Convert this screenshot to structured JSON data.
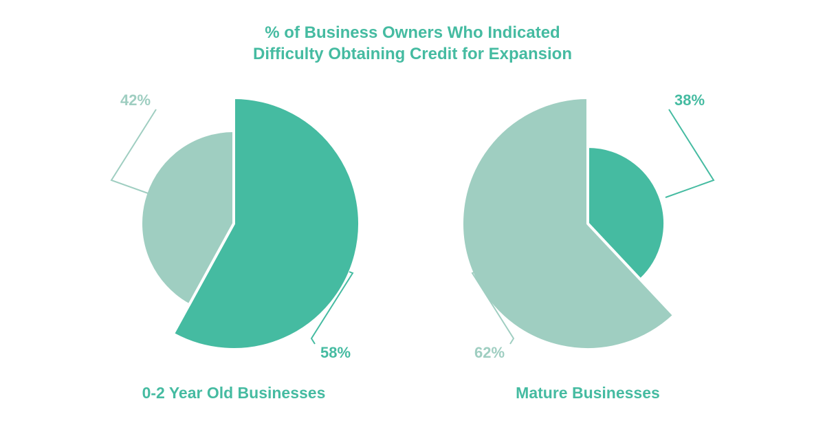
{
  "title": "% of Business Owners Who Indicated\nDifficulty Obtaining Credit for Expansion",
  "chart_data": [
    {
      "type": "pie",
      "title": "0-2 Year Old Businesses",
      "values": [
        58,
        42
      ],
      "value_labels": [
        "58%",
        "42%"
      ],
      "colors": [
        "#45bba1",
        "#9fcec1"
      ]
    },
    {
      "type": "pie",
      "title": "Mature Businesses",
      "values": [
        38,
        62
      ],
      "value_labels": [
        "38%",
        "62%"
      ],
      "colors": [
        "#45bba1",
        "#9fcec1"
      ]
    }
  ]
}
